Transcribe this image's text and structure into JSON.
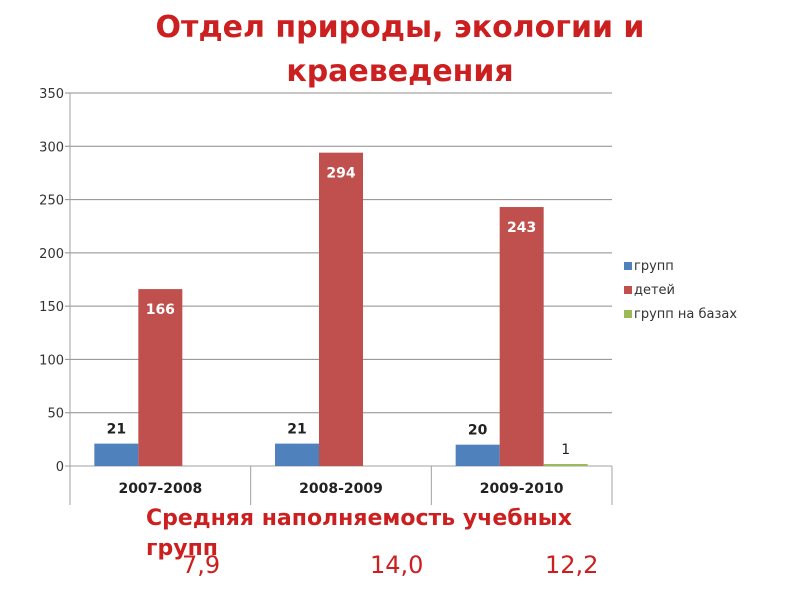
{
  "title": "Отдел природы, экологии и краеведения",
  "footer": {
    "note": "Средняя наполняемость учебных групп",
    "averages": [
      "7,9",
      "14,0",
      "12,2"
    ]
  },
  "chart_data": {
    "type": "bar",
    "categories": [
      "2007-2008",
      "2008-2009",
      "2009-2010"
    ],
    "series": [
      {
        "name": "групп",
        "values": [
          21,
          21,
          20
        ],
        "color": "#4f81bd"
      },
      {
        "name": "детей",
        "values": [
          166,
          294,
          243
        ],
        "color": "#c0504d"
      },
      {
        "name": "групп на базах",
        "values": [
          0,
          0,
          1
        ],
        "color": "#9bbb59"
      }
    ],
    "data_labels": [
      [
        "21",
        "21",
        "20"
      ],
      [
        "166",
        "294",
        "243"
      ],
      [
        "",
        "",
        "1"
      ]
    ],
    "yticks": [
      0,
      50,
      100,
      150,
      200,
      250,
      300,
      350
    ],
    "ylim": [
      0,
      350
    ],
    "grid": true,
    "legend_position": "right"
  }
}
